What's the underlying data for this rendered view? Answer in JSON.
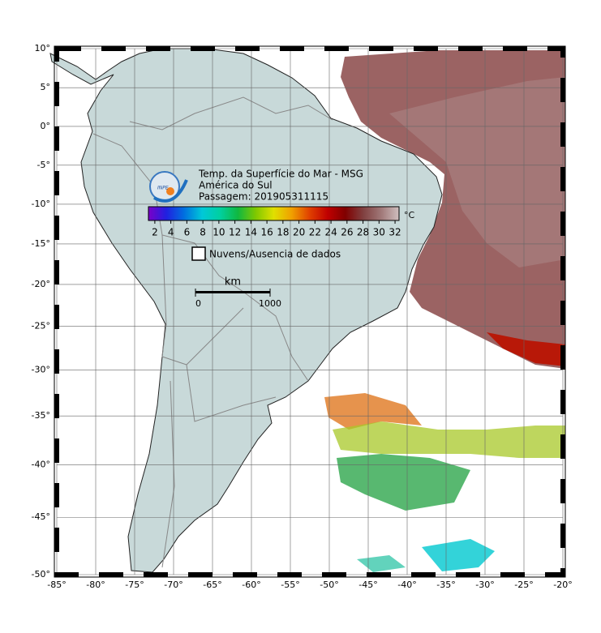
{
  "map": {
    "projection": "mercator",
    "xlim": [
      -85,
      -20
    ],
    "ylim": [
      -50,
      10
    ],
    "grid": true,
    "xticks": [
      {
        "value": -85,
        "label": "-85°"
      },
      {
        "value": -80,
        "label": "-80°"
      },
      {
        "value": -75,
        "label": "-75°"
      },
      {
        "value": -70,
        "label": "-70°"
      },
      {
        "value": -65,
        "label": "-65°"
      },
      {
        "value": -60,
        "label": "-60°"
      },
      {
        "value": -55,
        "label": "-55°"
      },
      {
        "value": -50,
        "label": "-50°"
      },
      {
        "value": -45,
        "label": "-45°"
      },
      {
        "value": -40,
        "label": "-40°"
      },
      {
        "value": -35,
        "label": "-35°"
      },
      {
        "value": -30,
        "label": "-30°"
      },
      {
        "value": -25,
        "label": "-25°"
      },
      {
        "value": -20,
        "label": "-20°"
      }
    ],
    "yticks": [
      {
        "value": 10,
        "label": "10°"
      },
      {
        "value": 5,
        "label": "5°"
      },
      {
        "value": 0,
        "label": "0°"
      },
      {
        "value": -5,
        "label": "-5°"
      },
      {
        "value": -10,
        "label": "-10°"
      },
      {
        "value": -15,
        "label": "-15°"
      },
      {
        "value": -20,
        "label": "-20°"
      },
      {
        "value": -25,
        "label": "-25°"
      },
      {
        "value": -30,
        "label": "-30°"
      },
      {
        "value": -35,
        "label": "-35°"
      },
      {
        "value": -40,
        "label": "-40°"
      },
      {
        "value": -45,
        "label": "-45°"
      },
      {
        "value": -50,
        "label": "-50°"
      }
    ]
  },
  "legend": {
    "logo": "INPE",
    "title_lines": [
      "Temp. da Superfície do Mar - MSG",
      "América do Sul",
      "Passagem: 201905311115"
    ],
    "unit": "°C",
    "colorbar": {
      "lim": [
        1.2,
        32.5
      ],
      "ticks": [
        2,
        4,
        6,
        8,
        10,
        12,
        14,
        16,
        18,
        20,
        22,
        24,
        26,
        28,
        30,
        32
      ],
      "colors": [
        "#7a00c8",
        "#2020e0",
        "#0070e0",
        "#00c8d8",
        "#00d0a0",
        "#10b840",
        "#80c800",
        "#e0e000",
        "#f0a000",
        "#e04000",
        "#c00000",
        "#800000",
        "#804040",
        "#a07878",
        "#d0c0c0"
      ]
    },
    "no_data": "Nuvens/Ausencia de dados",
    "scale_bar": {
      "unit": "km",
      "ticks": [
        0,
        1000
      ]
    }
  }
}
